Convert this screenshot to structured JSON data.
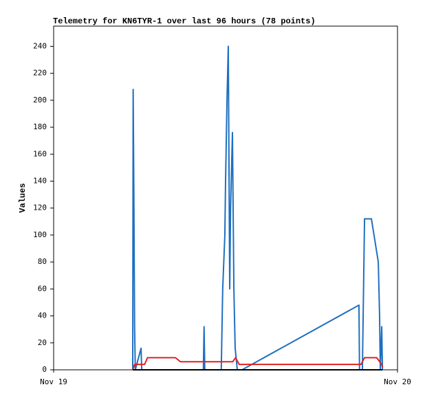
{
  "chart_data": {
    "type": "line",
    "title": "Telemetry for KN6TYR-1 over last 96 hours (78 points)",
    "y_label": "Values",
    "xlim": [
      0,
      24
    ],
    "xticks": [
      {
        "value": 0,
        "label": "Nov 19"
      },
      {
        "value": 24,
        "label": "Nov 20"
      }
    ],
    "ylim": [
      0,
      255
    ],
    "yticks": [
      0,
      20,
      40,
      60,
      80,
      100,
      120,
      140,
      160,
      180,
      200,
      220,
      240
    ],
    "grid": false,
    "series": [
      {
        "color": "#1f6fc0",
        "x": [
          5.52,
          5.55,
          5.6,
          5.65,
          5.7,
          6.1,
          6.15,
          10.45,
          10.5,
          10.55,
          11.7,
          11.8,
          11.95,
          12.0,
          12.1,
          12.19,
          12.29,
          12.35,
          12.48,
          12.58,
          12.67,
          12.82,
          13.15,
          21.31,
          21.35,
          21.55,
          21.7,
          22.18,
          22.66,
          22.75,
          22.8,
          22.9,
          22.95
        ],
        "values": [
          0,
          208,
          128,
          32,
          0,
          16,
          0,
          0,
          32,
          0,
          0,
          60,
          100,
          140,
          200,
          240,
          60,
          120,
          176,
          60,
          16,
          0,
          0,
          48,
          0,
          0,
          112,
          112,
          80,
          40,
          0,
          32,
          0
        ]
      },
      {
        "color": "#e02020",
        "x": [
          5.52,
          5.65,
          6.35,
          6.55,
          8.5,
          8.85,
          12.5,
          12.7,
          12.95,
          21.45,
          21.7,
          22.55,
          22.9,
          22.95
        ],
        "values": [
          0,
          4,
          4,
          9,
          9,
          6,
          6,
          9,
          4,
          4,
          9,
          9,
          4,
          2
        ]
      },
      {
        "color": "#000000",
        "x": [
          5.52,
          22.95
        ],
        "values": [
          0,
          0
        ]
      }
    ]
  }
}
